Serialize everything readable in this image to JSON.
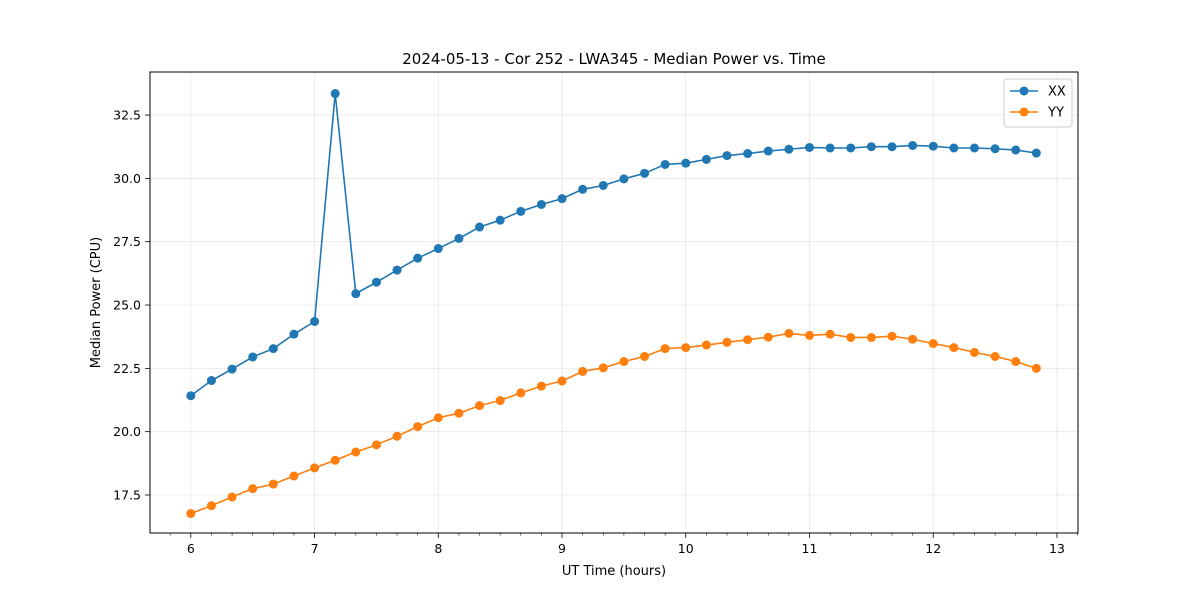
{
  "chart_data": {
    "type": "line",
    "title": "2024-05-13 - Cor 252 - LWA345 - Median Power vs. Time",
    "xlabel": "UT Time (hours)",
    "ylabel": "Median Power (CPU)",
    "xlim": [
      5.67,
      13.17
    ],
    "ylim": [
      16.0,
      34.2
    ],
    "xticks": [
      6,
      7,
      8,
      9,
      10,
      11,
      12,
      13
    ],
    "xtick_labels": [
      "6",
      "7",
      "8",
      "9",
      "10",
      "11",
      "12",
      "13"
    ],
    "yticks": [
      17.5,
      20.0,
      22.5,
      25.0,
      27.5,
      30.0,
      32.5
    ],
    "ytick_labels": [
      "17.5",
      "20.0",
      "22.5",
      "25.0",
      "27.5",
      "30.0",
      "32.5"
    ],
    "grid": true,
    "legend_position": "top-right",
    "x": [
      6.0,
      6.1667,
      6.3333,
      6.5,
      6.6667,
      6.8333,
      7.0,
      7.1667,
      7.3333,
      7.5,
      7.6667,
      7.8333,
      8.0,
      8.1667,
      8.3333,
      8.5,
      8.6667,
      8.8333,
      9.0,
      9.1667,
      9.3333,
      9.5,
      9.6667,
      9.8333,
      10.0,
      10.1667,
      10.3333,
      10.5,
      10.6667,
      10.8333,
      11.0,
      11.1667,
      11.3333,
      11.5,
      11.6667,
      11.8333,
      12.0,
      12.1667,
      12.3333,
      12.5,
      12.6667,
      12.8333
    ],
    "series": [
      {
        "name": "XX",
        "color": "#1f77b4",
        "values": [
          21.42,
          22.02,
          22.47,
          22.95,
          23.28,
          23.85,
          24.35,
          33.35,
          25.45,
          25.9,
          26.38,
          26.85,
          27.23,
          27.63,
          28.08,
          28.35,
          28.7,
          28.97,
          29.2,
          29.57,
          29.72,
          29.98,
          30.2,
          30.55,
          30.6,
          30.75,
          30.9,
          30.98,
          31.08,
          31.15,
          31.22,
          31.2,
          31.2,
          31.25,
          31.25,
          31.3,
          31.27,
          31.2,
          31.2,
          31.17,
          31.12,
          31.0
        ]
      },
      {
        "name": "YY",
        "color": "#ff7f0e",
        "values": [
          16.77,
          17.08,
          17.42,
          17.75,
          17.93,
          18.25,
          18.57,
          18.87,
          19.2,
          19.48,
          19.82,
          20.2,
          20.55,
          20.73,
          21.03,
          21.23,
          21.53,
          21.8,
          22.0,
          22.38,
          22.52,
          22.77,
          22.97,
          23.28,
          23.32,
          23.42,
          23.53,
          23.63,
          23.73,
          23.88,
          23.8,
          23.85,
          23.72,
          23.72,
          23.77,
          23.65,
          23.48,
          23.32,
          23.13,
          22.97,
          22.77,
          22.5
        ]
      }
    ]
  }
}
